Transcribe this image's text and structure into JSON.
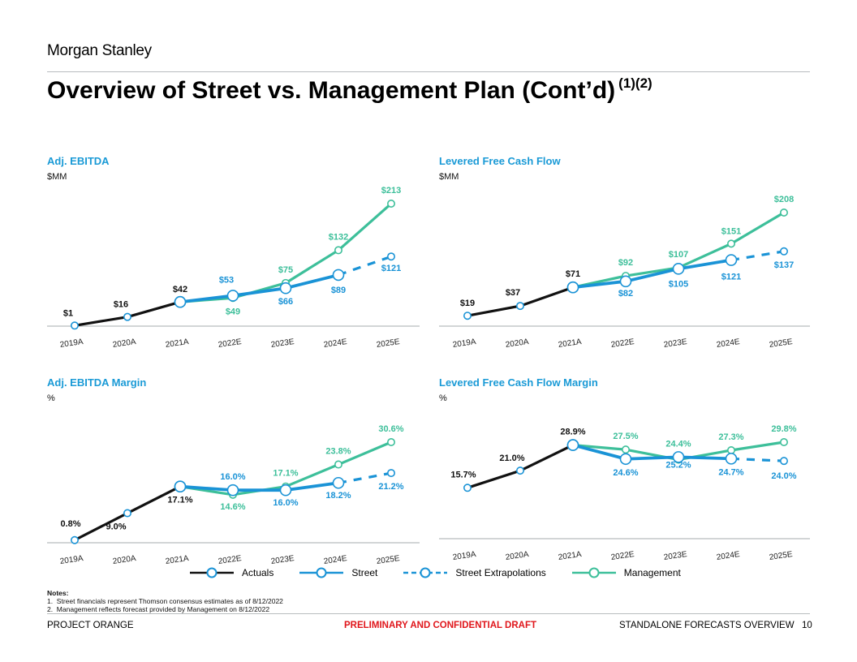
{
  "brand": "Morgan Stanley",
  "title": "Overview of Street vs. Management Plan (Cont’d)",
  "title_footnotes": "(1)(2)",
  "colors": {
    "actuals": "#111111",
    "street": "#1a93d6",
    "management": "#3dbf9a",
    "header": "#1a9ad6",
    "confidential": "#e0161b"
  },
  "legend": [
    {
      "name": "Actuals",
      "style": "solid",
      "color": "#111111"
    },
    {
      "name": "Street",
      "style": "solid",
      "color": "#1a93d6"
    },
    {
      "name": "Street Extrapolations",
      "style": "dashed",
      "color": "#1a93d6"
    },
    {
      "name": "Management",
      "style": "solid",
      "color": "#3dbf9a"
    }
  ],
  "chart_data": [
    {
      "type": "line",
      "title": "Adj. EBITDA",
      "unit": "$MM",
      "format": "dollar",
      "categories": [
        "2019A",
        "2020A",
        "2021A",
        "2022E",
        "2023E",
        "2024E",
        "2025E"
      ],
      "series": [
        {
          "name": "Actuals",
          "values": [
            1,
            16,
            42,
            null,
            null,
            null,
            null
          ],
          "labels": [
            "$1",
            "$16",
            "$42",
            null,
            null,
            null,
            null
          ]
        },
        {
          "name": "Street",
          "values": [
            null,
            null,
            42,
            53,
            66,
            89,
            null
          ],
          "labels": [
            null,
            null,
            null,
            "$53",
            "$66",
            "$89",
            null
          ]
        },
        {
          "name": "Street Extrapolations",
          "values": [
            null,
            null,
            null,
            null,
            null,
            89,
            121
          ],
          "labels": [
            null,
            null,
            null,
            null,
            null,
            null,
            "$121"
          ]
        },
        {
          "name": "Management",
          "values": [
            null,
            null,
            42,
            49,
            75,
            132,
            213
          ],
          "labels": [
            null,
            null,
            null,
            "$49",
            "$75",
            "$132",
            "$213"
          ]
        }
      ],
      "ylim": [
        0,
        213
      ]
    },
    {
      "type": "line",
      "title": "Levered Free Cash Flow",
      "unit": "$MM",
      "format": "dollar",
      "categories": [
        "2019A",
        "2020A",
        "2021A",
        "2022E",
        "2023E",
        "2024E",
        "2025E"
      ],
      "series": [
        {
          "name": "Actuals",
          "values": [
            19,
            37,
            71,
            null,
            null,
            null,
            null
          ],
          "labels": [
            "$19",
            "$37",
            "$71",
            null,
            null,
            null,
            null
          ]
        },
        {
          "name": "Street",
          "values": [
            null,
            null,
            71,
            82,
            105,
            121,
            null
          ],
          "labels": [
            null,
            null,
            null,
            "$82",
            "$105",
            "$121",
            null
          ]
        },
        {
          "name": "Street Extrapolations",
          "values": [
            null,
            null,
            null,
            null,
            null,
            121,
            137
          ],
          "labels": [
            null,
            null,
            null,
            null,
            null,
            null,
            "$137"
          ]
        },
        {
          "name": "Management",
          "values": [
            null,
            null,
            71,
            92,
            107,
            151,
            208
          ],
          "labels": [
            null,
            null,
            null,
            "$92",
            "$107",
            "$151",
            "$208"
          ]
        }
      ],
      "ylim": [
        0,
        208
      ]
    },
    {
      "type": "line",
      "title": "Adj. EBITDA Margin",
      "unit": "%",
      "format": "percent",
      "categories": [
        "2019A",
        "2020A",
        "2021A",
        "2022E",
        "2023E",
        "2024E",
        "2025E"
      ],
      "series": [
        {
          "name": "Actuals",
          "values": [
            0.8,
            9.0,
            17.1,
            null,
            null,
            null,
            null
          ],
          "labels": [
            "0.8%",
            "9.0%",
            "17.1%",
            null,
            null,
            null,
            null
          ]
        },
        {
          "name": "Street",
          "values": [
            null,
            null,
            17.1,
            16.0,
            16.0,
            18.2,
            null
          ],
          "labels": [
            null,
            null,
            null,
            "16.0%",
            "16.0%",
            "18.2%",
            null
          ]
        },
        {
          "name": "Street Extrapolations",
          "values": [
            null,
            null,
            null,
            null,
            null,
            18.2,
            21.2
          ],
          "labels": [
            null,
            null,
            null,
            null,
            null,
            null,
            "21.2%"
          ]
        },
        {
          "name": "Management",
          "values": [
            null,
            null,
            17.1,
            14.6,
            17.1,
            23.8,
            30.6
          ],
          "labels": [
            null,
            null,
            null,
            "14.6%",
            "17.1%",
            "23.8%",
            "30.6%"
          ]
        }
      ],
      "ylim": [
        0,
        30.6
      ]
    },
    {
      "type": "line",
      "title": "Levered Free Cash Flow Margin",
      "unit": "%",
      "format": "percent",
      "categories": [
        "2019A",
        "2020A",
        "2021A",
        "2022E",
        "2023E",
        "2024E",
        "2025E"
      ],
      "series": [
        {
          "name": "Actuals",
          "values": [
            15.7,
            21.0,
            28.9,
            null,
            null,
            null,
            null
          ],
          "labels": [
            "15.7%",
            "21.0%",
            "28.9%",
            null,
            null,
            null,
            null
          ]
        },
        {
          "name": "Street",
          "values": [
            null,
            null,
            28.9,
            24.6,
            25.2,
            24.7,
            null
          ],
          "labels": [
            null,
            null,
            null,
            "24.6%",
            "25.2%",
            "24.7%",
            null
          ]
        },
        {
          "name": "Street Extrapolations",
          "values": [
            null,
            null,
            null,
            null,
            null,
            24.7,
            24.0
          ],
          "labels": [
            null,
            null,
            null,
            null,
            null,
            null,
            "24.0%"
          ]
        },
        {
          "name": "Management",
          "values": [
            null,
            null,
            28.9,
            27.5,
            24.4,
            27.3,
            29.8
          ],
          "labels": [
            null,
            null,
            null,
            "27.5%",
            "24.4%",
            "27.3%",
            "29.8%"
          ]
        }
      ],
      "ylim": [
        0,
        29.8
      ]
    }
  ],
  "notes": {
    "heading": "Notes:",
    "items": [
      "1.  Street financials represent Thomson consensus estimates as of 8/12/2022",
      "2.  Management reflects forecast provided by Management on 8/12/2022"
    ]
  },
  "footer": {
    "project": "PROJECT ORANGE",
    "confidential": "PRELIMINARY AND CONFIDENTIAL DRAFT",
    "section": "STANDALONE FORECASTS OVERVIEW",
    "page": "10"
  }
}
